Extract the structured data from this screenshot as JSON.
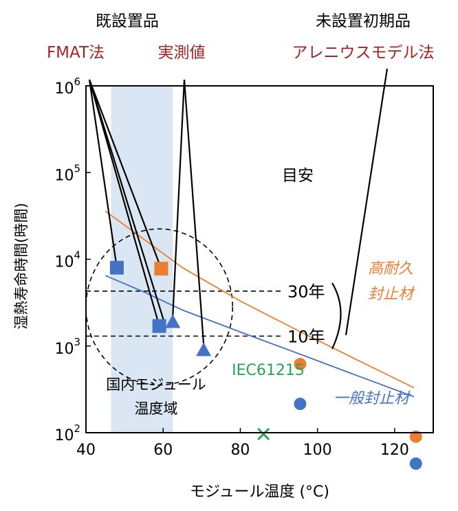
{
  "chart_data": {
    "type": "scatter",
    "xlabel": "モジュール温度 (°C)",
    "ylabel": "湿熱寿命時間(時間)",
    "xlim": [
      40,
      130
    ],
    "ylim": [
      100,
      1000000
    ],
    "log_y": true,
    "x_ticks": [
      {
        "value": 40,
        "label": "40"
      },
      {
        "value": 60,
        "label": "60"
      },
      {
        "value": 80,
        "label": "80"
      },
      {
        "value": 100,
        "label": "100"
      },
      {
        "value": 120,
        "label": "120"
      }
    ],
    "y_ticks": [
      {
        "value": 100,
        "base": "10",
        "exp": "2"
      },
      {
        "value": 1000,
        "base": "10",
        "exp": "3"
      },
      {
        "value": 10000,
        "base": "10",
        "exp": "4"
      },
      {
        "value": 100000,
        "base": "10",
        "exp": "5"
      },
      {
        "value": 1000000,
        "base": "10",
        "exp": "6"
      }
    ],
    "colors": {
      "orange": "#ed7d31",
      "blue": "#4472c4",
      "green": "#27a551",
      "red": "#a52222",
      "shade": "#dae6f3"
    },
    "shaded_region": {
      "x": [
        46.5,
        62.5
      ],
      "label_line1": "国内モジュール",
      "label_line2": "温度域"
    },
    "fit_lines": [
      {
        "color": "orange",
        "points": [
          [
            45,
            36000
          ],
          [
            55,
            17000
          ],
          [
            65,
            8000
          ],
          [
            80,
            3300
          ],
          [
            95,
            1500
          ],
          [
            110,
            700
          ],
          [
            125,
            330
          ]
        ]
      },
      {
        "color": "blue",
        "points": [
          [
            45,
            6500
          ],
          [
            55,
            4200
          ],
          [
            65,
            2600
          ],
          [
            80,
            1450
          ],
          [
            95,
            820
          ],
          [
            110,
            460
          ],
          [
            125,
            260
          ]
        ]
      }
    ],
    "squares": [
      {
        "x": 48,
        "y": 8000,
        "color": "blue"
      },
      {
        "x": 59.5,
        "y": 7800,
        "color": "orange"
      },
      {
        "x": 59,
        "y": 1700,
        "color": "blue"
      }
    ],
    "triangles": [
      {
        "x": 62.5,
        "y": 1900,
        "color": "blue"
      },
      {
        "x": 70.5,
        "y": 900,
        "color": "blue"
      }
    ],
    "circles": [
      {
        "x": 95.5,
        "y": 620,
        "color": "orange"
      },
      {
        "x": 125.5,
        "y": 90,
        "color": "orange"
      },
      {
        "x": 95.5,
        "y": 215,
        "color": "blue"
      },
      {
        "x": 125.5,
        "y": 44,
        "color": "blue"
      }
    ],
    "cross": {
      "x": 86,
      "y": 100,
      "color": "green",
      "label": "IEC61215"
    },
    "guide_lines": [
      {
        "y": 4300,
        "label": "30年"
      },
      {
        "y": 1300,
        "label": "10年"
      }
    ],
    "guide_title": "目安",
    "dashed_circle": {
      "cx": 59,
      "cy_log": 3.45,
      "r_x": 19,
      "r_log": 0.9
    },
    "annotations": {
      "existing_header": "既設置品",
      "new_header": "未設置初期品",
      "fmat": "FMAT法",
      "measured": "実測値",
      "arrhenius": "アレニウスモデル法",
      "high_durability_1": "高耐久",
      "high_durability_2": "封止材",
      "general": "一般封止材"
    }
  }
}
